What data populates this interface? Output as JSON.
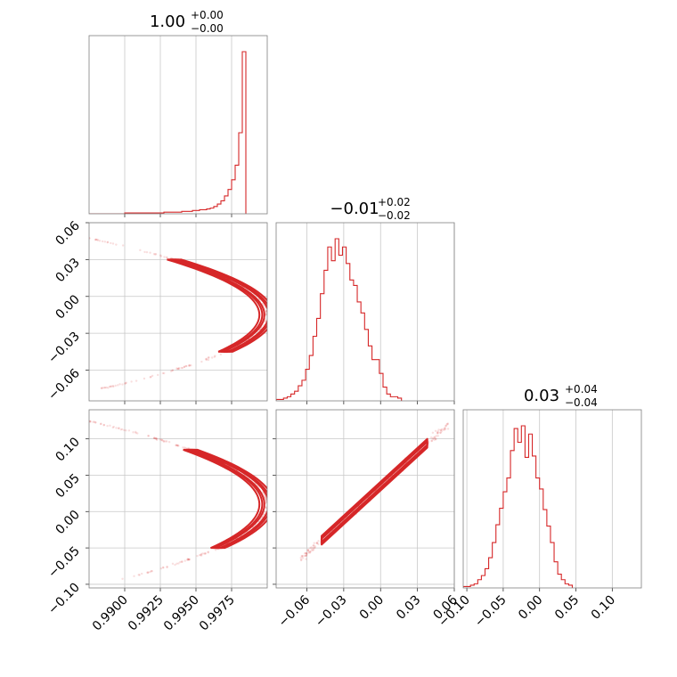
{
  "chart_data": {
    "type": "corner",
    "color": "#d62728",
    "parameters": [
      {
        "range": [
          0.9875,
          1.0
        ],
        "ticks": [
          0.99,
          0.9925,
          0.995,
          0.9975
        ],
        "tick_labels": [
          "0.9900",
          "0.9925",
          "0.9950",
          "0.9975"
        ],
        "title": {
          "median": "1.00",
          "plus": "+0.00",
          "minus": "−0.00"
        }
      },
      {
        "range": [
          -0.085,
          0.06
        ],
        "ticks": [
          -0.06,
          -0.03,
          0.0,
          0.03,
          0.06
        ],
        "tick_labels": [
          "−0.06",
          "−0.03",
          "0.00",
          "0.03",
          "0.06"
        ],
        "title": {
          "median": "−0.01",
          "plus": "+0.02",
          "minus": "−0.02"
        }
      },
      {
        "range": [
          -0.105,
          0.14
        ],
        "ticks": [
          -0.1,
          -0.05,
          0.0,
          0.05,
          0.1
        ],
        "tick_labels": [
          "−0.10",
          "−0.05",
          "0.00",
          "0.05",
          "0.10"
        ],
        "title": {
          "median": "0.03",
          "plus": "+0.04",
          "minus": "−0.04"
        }
      }
    ],
    "histograms": [
      {
        "param": 0,
        "bin_start": 0.9875,
        "bin_width": 0.00025,
        "counts": [
          0,
          0,
          0,
          0,
          0,
          0,
          0,
          0,
          0,
          0,
          1,
          1,
          1,
          1,
          1,
          1,
          1,
          1,
          1,
          1,
          1,
          2,
          2,
          2,
          2,
          2,
          3,
          3,
          3,
          4,
          4,
          5,
          5,
          6,
          7,
          9,
          12,
          16,
          22,
          30,
          42,
          60,
          100,
          200
        ]
      },
      {
        "param": 1,
        "bin_start": -0.085,
        "bin_width": 0.003,
        "counts": [
          1,
          1,
          2,
          3,
          5,
          7,
          11,
          15,
          23,
          33,
          47,
          60,
          78,
          95,
          112,
          102,
          118,
          106,
          112,
          100,
          88,
          84,
          72,
          64,
          52,
          40,
          30,
          30,
          20,
          10,
          5,
          3,
          3,
          2
        ]
      },
      {
        "param": 2,
        "bin_start": -0.105,
        "bin_width": 0.005,
        "counts": [
          1,
          1,
          2,
          3,
          6,
          9,
          14,
          22,
          33,
          46,
          58,
          70,
          80,
          100,
          116,
          106,
          118,
          95,
          112,
          96,
          80,
          72,
          57,
          45,
          33,
          19,
          10,
          6,
          3,
          2
        ]
      }
    ],
    "contours": [
      {
        "x_param": 0,
        "y_param": 1,
        "type": "parabola",
        "apex_x": 0.99995,
        "apex_y": -0.015,
        "curvature": 3.2,
        "widths": [
          0.0003,
          0.0006,
          0.001
        ],
        "y_span": [
          -0.045,
          0.03
        ],
        "scatter_y_span": [
          -0.075,
          0.06
        ]
      },
      {
        "x_param": 0,
        "y_param": 2,
        "type": "parabola",
        "apex_x": 0.99995,
        "apex_y": 0.01,
        "curvature": 0.95,
        "widths": [
          0.0003,
          0.0006,
          0.001
        ],
        "y_span": [
          -0.05,
          0.085
        ],
        "scatter_y_span": [
          -0.095,
          0.13
        ]
      },
      {
        "x_param": 1,
        "y_param": 2,
        "type": "linear",
        "slope": 1.55,
        "intercept": 0.035,
        "widths": [
          0.002,
          0.004,
          0.006
        ],
        "x_span": [
          -0.048,
          0.038
        ],
        "scatter_x_span": [
          -0.065,
          0.055
        ]
      }
    ]
  }
}
